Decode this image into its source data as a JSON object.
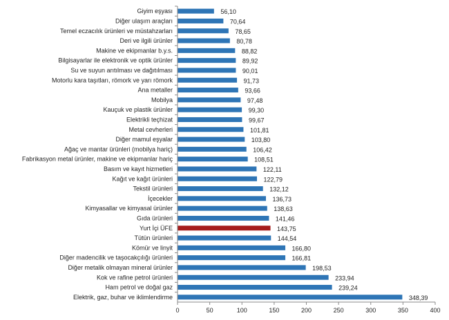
{
  "chart_data": {
    "type": "bar",
    "orientation": "horizontal",
    "categories": [
      "Giyim eşyası",
      "Diğer ulaşım araçları",
      "Temel eczacılık ürünleri ve müstahzarları",
      "Deri ve ilgili ürünler",
      "Makine ve ekipmanlar b.y.s.",
      "Bilgisayarlar ile elektronik ve optik ürünler",
      "Su ve suyun arıtılması ve dağıtılması",
      "Motorlu kara taşıtları, römork ve yarı römork",
      "Ana metaller",
      "Mobilya",
      "Kauçuk ve plastik ürünler",
      "Elektrikli teçhizat",
      "Metal cevherleri",
      "Diğer mamul eşyalar",
      "Ağaç ve mantar ürünleri (mobilya hariç)",
      "Fabrikasyon metal ürünler, makine ve ekipmanlar hariç",
      "Basım ve kayıt hizmetleri",
      "Kağıt ve kağıt ürünleri",
      "Tekstil ürünleri",
      "İçecekler",
      "Kimyasallar ve kimyasal ürünler",
      "Gıda ürünleri",
      "Yurt İçi ÜFE",
      "Tütün ürünleri",
      "Kömür ve linyit",
      "Diğer madencilik ve taşocakçılığı ürünleri",
      "Diğer metalik olmayan mineral ürünler",
      "Kok ve rafine petrol ürünleri",
      "Ham petrol ve doğal gaz",
      "Elektrik, gaz, buhar ve iklimlendirme"
    ],
    "values": [
      56.1,
      70.64,
      78.65,
      80.78,
      88.82,
      89.92,
      90.01,
      91.73,
      93.66,
      97.48,
      99.3,
      99.67,
      101.81,
      103.8,
      106.42,
      108.51,
      122.11,
      122.79,
      132.12,
      136.73,
      138.63,
      141.46,
      143.75,
      144.54,
      166.8,
      166.81,
      198.53,
      233.94,
      239.24,
      348.39
    ],
    "data_labels": [
      "56,10",
      "70,64",
      "78,65",
      "80,78",
      "88,82",
      "89,92",
      "90,01",
      "91,73",
      "93,66",
      "97,48",
      "99,30",
      "99,67",
      "101,81",
      "103,80",
      "106,42",
      "108,51",
      "122,11",
      "122,79",
      "132,12",
      "136,73",
      "138,63",
      "141,46",
      "143,75",
      "144,54",
      "166,80",
      "166,81",
      "198,53",
      "233,94",
      "239,24",
      "348,39"
    ],
    "highlight_category": "Yurt İçi ÜFE",
    "xlim": [
      0,
      400
    ],
    "xticks": [
      "0",
      "50",
      "100",
      "150",
      "200",
      "250",
      "300",
      "350",
      "400"
    ],
    "grid": false,
    "colors": {
      "bar": "#2e75b6",
      "highlight": "#a61c1c",
      "axis": "#888888"
    }
  }
}
